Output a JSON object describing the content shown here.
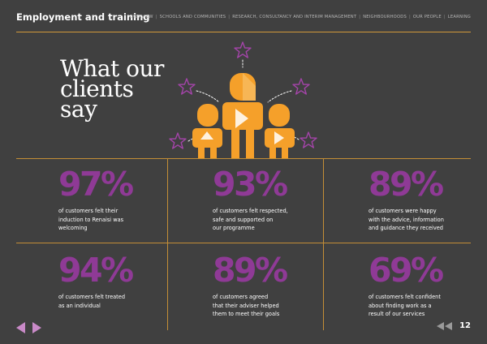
{
  "header": {
    "title": "Employment and training",
    "nav": [
      "OVERVIEW",
      "SCHOOLS AND COMMUNITIES",
      "RESEARCH, CONSULTANCY AND INTERIM MANAGEMENT",
      "NEIGHBOURHOODS",
      "OUR PEOPLE",
      "LEARNING"
    ]
  },
  "headline": {
    "line1": "What our",
    "line2": "clients",
    "line3": "say"
  },
  "stats": [
    {
      "value": "97%",
      "desc1": "of customers felt their",
      "desc2": "induction to Renaisi was",
      "desc3": "welcoming"
    },
    {
      "value": "93%",
      "desc1": "of customers felt respected,",
      "desc2": "safe and supported on",
      "desc3": "our programme"
    },
    {
      "value": "89%",
      "desc1": "of customers were happy",
      "desc2": "with the advice, information",
      "desc3": "and guidance they received"
    },
    {
      "value": "94%",
      "desc1": "of customers felt treated",
      "desc2": "as an individual",
      "desc3": ""
    },
    {
      "value": "89%",
      "desc1": "of customers agreed",
      "desc2": "that their adviser helped",
      "desc3": "them to meet their goals"
    },
    {
      "value": "69%",
      "desc1": "of customers felt confident",
      "desc2": "about finding work as a",
      "desc3": "result of our services"
    }
  ],
  "footer": {
    "page_number": "12"
  },
  "icons": {
    "prev_next": "prev-next-arrows-icon",
    "rewind": "rewind-icon",
    "people": "people-illustration-icon",
    "star": "star-icon"
  },
  "colors": {
    "background": "#404040",
    "accent_purple": "#8f3a96",
    "accent_orange": "#f5a02a",
    "rule": "#c48e36",
    "nav_arrows": "#c98ac8"
  }
}
